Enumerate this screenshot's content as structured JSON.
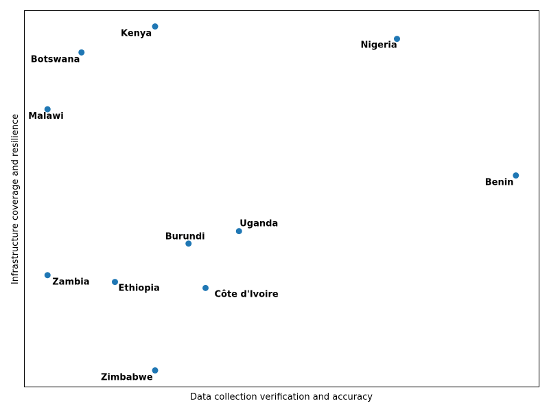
{
  "chart_data": {
    "type": "scatter",
    "title": "",
    "xlabel": "Data collection verification and accuracy",
    "ylabel": "Infrastructure coverage and resilience",
    "xlim": [
      0,
      100
    ],
    "ylim": [
      0,
      100
    ],
    "grid": false,
    "ticks_visible": false,
    "marker_color": "#1f77b4",
    "points": [
      {
        "label": "Kenya",
        "x": 25.4,
        "y": 95.8
      },
      {
        "label": "Nigeria",
        "x": 72.4,
        "y": 92.5
      },
      {
        "label": "Botswana",
        "x": 11.1,
        "y": 88.9
      },
      {
        "label": "Malawi",
        "x": 4.5,
        "y": 73.8
      },
      {
        "label": "Benin",
        "x": 95.5,
        "y": 56.2
      },
      {
        "label": "Uganda",
        "x": 41.7,
        "y": 41.4
      },
      {
        "label": "Burundi",
        "x": 31.9,
        "y": 38.1
      },
      {
        "label": "Zambia",
        "x": 4.5,
        "y": 29.7
      },
      {
        "label": "Ethiopia",
        "x": 17.6,
        "y": 27.9
      },
      {
        "label": "Côte d'Ivoire",
        "x": 35.2,
        "y": 26.3
      },
      {
        "label": "Zimbabwe",
        "x": 25.4,
        "y": 4.4
      }
    ]
  }
}
